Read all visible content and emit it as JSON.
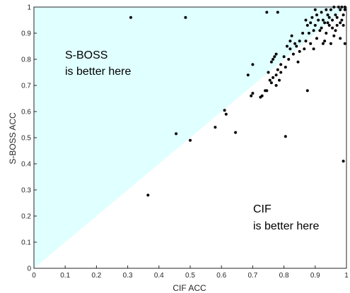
{
  "chart_data": {
    "type": "scatter",
    "xlabel": "CIF ACC",
    "ylabel": "S-BOSS ACC",
    "xlim": [
      0,
      1
    ],
    "ylim": [
      0,
      1
    ],
    "xticks": [
      "0",
      "0.1",
      "0.2",
      "0.3",
      "0.4",
      "0.5",
      "0.6",
      "0.7",
      "0.8",
      "0.9",
      "1"
    ],
    "yticks": [
      "0",
      "0.1",
      "0.2",
      "0.3",
      "0.4",
      "0.5",
      "0.6",
      "0.7",
      "0.8",
      "0.9",
      "1"
    ],
    "region_fill": "#e0ffff",
    "point_color": "#000000",
    "annotations": {
      "upper": [
        "S-BOSS",
        "is better here"
      ],
      "lower": [
        "CIF",
        "is better here"
      ]
    },
    "points": [
      [
        0.31,
        0.96
      ],
      [
        0.485,
        0.96
      ],
      [
        0.745,
        0.98
      ],
      [
        0.78,
        0.98
      ],
      [
        0.365,
        0.28
      ],
      [
        0.455,
        0.515
      ],
      [
        0.5,
        0.49
      ],
      [
        0.58,
        0.54
      ],
      [
        0.61,
        0.605
      ],
      [
        0.615,
        0.59
      ],
      [
        0.645,
        0.52
      ],
      [
        0.685,
        0.74
      ],
      [
        0.695,
        0.66
      ],
      [
        0.7,
        0.67
      ],
      [
        0.7,
        0.78
      ],
      [
        0.725,
        0.655
      ],
      [
        0.73,
        0.66
      ],
      [
        0.74,
        0.68
      ],
      [
        0.745,
        0.68
      ],
      [
        0.75,
        0.75
      ],
      [
        0.755,
        0.72
      ],
      [
        0.76,
        0.79
      ],
      [
        0.765,
        0.73
      ],
      [
        0.765,
        0.8
      ],
      [
        0.77,
        0.81
      ],
      [
        0.775,
        0.7
      ],
      [
        0.775,
        0.82
      ],
      [
        0.78,
        0.76
      ],
      [
        0.785,
        0.72
      ],
      [
        0.79,
        0.78
      ],
      [
        0.8,
        0.81
      ],
      [
        0.805,
        0.505
      ],
      [
        0.81,
        0.85
      ],
      [
        0.815,
        0.8
      ],
      [
        0.82,
        0.87
      ],
      [
        0.825,
        0.89
      ],
      [
        0.83,
        0.82
      ],
      [
        0.84,
        0.85
      ],
      [
        0.845,
        0.79
      ],
      [
        0.85,
        0.87
      ],
      [
        0.86,
        0.9
      ],
      [
        0.865,
        0.84
      ],
      [
        0.87,
        0.87
      ],
      [
        0.875,
        0.93
      ],
      [
        0.875,
        0.68
      ],
      [
        0.88,
        0.9
      ],
      [
        0.885,
        0.86
      ],
      [
        0.89,
        0.96
      ],
      [
        0.895,
        0.84
      ],
      [
        0.9,
        0.93
      ],
      [
        0.905,
        0.88
      ],
      [
        0.91,
        0.95
      ],
      [
        0.915,
        0.91
      ],
      [
        0.92,
        0.98
      ],
      [
        0.925,
        0.86
      ],
      [
        0.93,
        0.94
      ],
      [
        0.935,
        0.9
      ],
      [
        0.94,
        0.97
      ],
      [
        0.945,
        0.93
      ],
      [
        0.95,
        0.99
      ],
      [
        0.955,
        0.95
      ],
      [
        0.96,
        1.0
      ],
      [
        0.965,
        0.91
      ],
      [
        0.97,
        0.96
      ],
      [
        0.975,
        1.0
      ],
      [
        0.98,
        0.94
      ],
      [
        0.985,
        1.0
      ],
      [
        0.99,
        0.97
      ],
      [
        0.995,
        1.0
      ],
      [
        0.99,
        0.41
      ],
      [
        0.995,
        0.86
      ],
      [
        0.98,
        0.88
      ],
      [
        0.995,
        0.99
      ],
      [
        0.985,
        0.95
      ],
      [
        0.965,
        0.97
      ],
      [
        0.955,
        0.92
      ],
      [
        0.945,
        0.96
      ],
      [
        0.935,
        0.99
      ],
      [
        0.925,
        0.95
      ],
      [
        0.905,
        0.97
      ],
      [
        0.895,
        0.91
      ],
      [
        0.885,
        0.94
      ],
      [
        0.87,
        0.95
      ],
      [
        0.85,
        0.83
      ],
      [
        0.835,
        0.86
      ],
      [
        0.82,
        0.84
      ],
      [
        0.805,
        0.77
      ],
      [
        0.79,
        0.75
      ],
      [
        0.775,
        0.74
      ],
      [
        0.76,
        0.71
      ],
      [
        0.95,
        0.86
      ],
      [
        0.97,
        0.93
      ],
      [
        0.99,
        0.93
      ],
      [
        0.93,
        0.87
      ],
      [
        0.96,
        0.89
      ],
      [
        0.98,
        0.99
      ],
      [
        0.9,
        0.99
      ],
      [
        0.92,
        0.92
      ],
      [
        0.94,
        0.94
      ]
    ]
  }
}
